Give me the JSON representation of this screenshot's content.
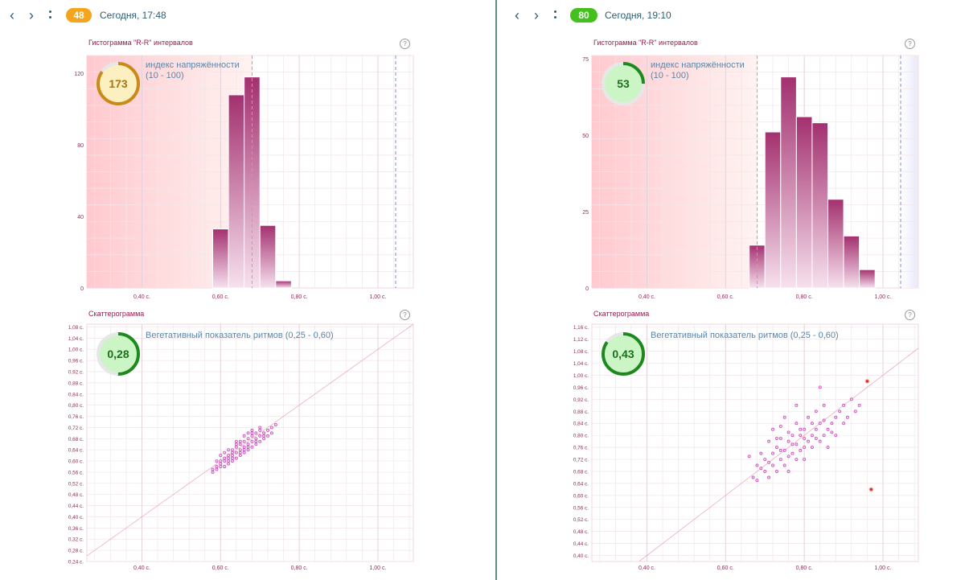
{
  "panels": [
    {
      "badge": "48",
      "badge_color": "#f4a51c",
      "datetime": "Сегодня, 17:48",
      "hist_title": "Гистограмма \"R-R\" интервалов",
      "scatter_title": "Скаттерограмма",
      "help_label": "?",
      "nav_prev": "‹",
      "nav_next": "›",
      "stress_index": {
        "value": "173",
        "label": "индекс напряжённости",
        "range": "(10 - 100)",
        "fraction": 0.85,
        "ring_color": "#c98a1a",
        "fill_color": "#fdf0c0",
        "text_color": "#a8741a"
      },
      "veg_index": {
        "value": "0,28",
        "label": "Вегетативный показатель ритмов (0,25 - 0,60)",
        "fraction": 0.5,
        "ring_color": "#1e8a1e",
        "fill_color": "#ccf5c6",
        "text_color": "#1b6e1b"
      },
      "chart_data": [
        {
          "type": "bar",
          "title": "Гистограмма \"R-R\" интервалов",
          "xlim": [
            0.26,
            1.09
          ],
          "ylim": [
            0,
            130
          ],
          "yticks": [
            0,
            40,
            80,
            120
          ],
          "ytick_labels": [
            "0",
            "40",
            "80",
            "120"
          ],
          "xticks": [
            0.4,
            0.6,
            0.8,
            1.0
          ],
          "xtick_labels": [
            "0,40 с.",
            "0,60 с.",
            "0,80 с.",
            "1,00 с."
          ],
          "bin_width": 0.04,
          "bins": [
            0.58,
            0.62,
            0.66,
            0.7,
            0.74
          ],
          "values": [
            33,
            108,
            118,
            35,
            4
          ],
          "normal_zone": [
            0.26,
            0.68
          ],
          "markers": [
            0.68,
            1.045
          ]
        },
        {
          "type": "scatter",
          "title": "Скаттерограмма",
          "xlim": [
            0.26,
            1.09
          ],
          "ylim": [
            0.24,
            1.09
          ],
          "xticks": [
            0.4,
            0.6,
            0.8,
            1.0
          ],
          "xtick_labels": [
            "0,40 с.",
            "0,60 с.",
            "0,80 с.",
            "1,00 с."
          ],
          "yticks": [
            0.24,
            0.28,
            0.32,
            0.36,
            0.4,
            0.44,
            0.48,
            0.52,
            0.56,
            0.6,
            0.64,
            0.68,
            0.72,
            0.76,
            0.8,
            0.84,
            0.88,
            0.92,
            0.96,
            1.0,
            1.04,
            1.08
          ],
          "ytick_labels": [
            "0,24 с.",
            "0,28 с.",
            "0,32 с.",
            "0,36 с.",
            "0,40 с.",
            "0,44 с.",
            "0,48 с.",
            "0,52 с.",
            "0,56 с.",
            "0,60 с.",
            "0,64 с.",
            "0,68 с.",
            "0,72 с.",
            "0,76 с.",
            "0,80 с.",
            "0,84 с.",
            "0,88 с.",
            "0,92 с.",
            "0,96 с.",
            "1,00 с.",
            "1,04 с.",
            "1,08 с."
          ],
          "points": [
            [
              0.58,
              0.56
            ],
            [
              0.58,
              0.57
            ],
            [
              0.59,
              0.58
            ],
            [
              0.59,
              0.57
            ],
            [
              0.6,
              0.58
            ],
            [
              0.6,
              0.59
            ],
            [
              0.6,
              0.6
            ],
            [
              0.61,
              0.58
            ],
            [
              0.61,
              0.6
            ],
            [
              0.61,
              0.61
            ],
            [
              0.62,
              0.59
            ],
            [
              0.62,
              0.61
            ],
            [
              0.62,
              0.62
            ],
            [
              0.63,
              0.6
            ],
            [
              0.63,
              0.62
            ],
            [
              0.63,
              0.63
            ],
            [
              0.63,
              0.64
            ],
            [
              0.64,
              0.61
            ],
            [
              0.64,
              0.63
            ],
            [
              0.64,
              0.65
            ],
            [
              0.65,
              0.62
            ],
            [
              0.65,
              0.64
            ],
            [
              0.65,
              0.66
            ],
            [
              0.65,
              0.67
            ],
            [
              0.66,
              0.63
            ],
            [
              0.66,
              0.65
            ],
            [
              0.66,
              0.67
            ],
            [
              0.67,
              0.64
            ],
            [
              0.67,
              0.66
            ],
            [
              0.67,
              0.68
            ],
            [
              0.68,
              0.65
            ],
            [
              0.68,
              0.67
            ],
            [
              0.68,
              0.69
            ],
            [
              0.69,
              0.66
            ],
            [
              0.69,
              0.68
            ],
            [
              0.69,
              0.7
            ],
            [
              0.7,
              0.67
            ],
            [
              0.7,
              0.69
            ],
            [
              0.7,
              0.71
            ],
            [
              0.71,
              0.68
            ],
            [
              0.71,
              0.7
            ],
            [
              0.72,
              0.69
            ],
            [
              0.72,
              0.71
            ],
            [
              0.73,
              0.7
            ],
            [
              0.73,
              0.72
            ],
            [
              0.74,
              0.73
            ],
            [
              0.6,
              0.62
            ],
            [
              0.61,
              0.63
            ],
            [
              0.62,
              0.64
            ],
            [
              0.64,
              0.67
            ],
            [
              0.66,
              0.69
            ],
            [
              0.67,
              0.7
            ],
            [
              0.68,
              0.71
            ],
            [
              0.63,
              0.61
            ],
            [
              0.65,
              0.63
            ],
            [
              0.67,
              0.65
            ],
            [
              0.69,
              0.67
            ],
            [
              0.71,
              0.69
            ],
            [
              0.59,
              0.6
            ],
            [
              0.66,
              0.64
            ],
            [
              0.62,
              0.6
            ],
            [
              0.64,
              0.66
            ],
            [
              0.68,
              0.7
            ],
            [
              0.7,
              0.72
            ]
          ],
          "outliers": []
        }
      ]
    },
    {
      "badge": "80",
      "badge_color": "#44c01c",
      "datetime": "Сегодня, 19:10",
      "hist_title": "Гистограмма \"R-R\" интервалов",
      "scatter_title": "Скаттерограмма",
      "help_label": "?",
      "nav_prev": "‹",
      "nav_next": "›",
      "stress_index": {
        "value": "53",
        "label": "индекс напряжённости",
        "range": "(10 - 100)",
        "fraction": 0.25,
        "ring_color": "#1e8a1e",
        "fill_color": "#ccf5c6",
        "text_color": "#1b6e1b"
      },
      "veg_index": {
        "value": "0,43",
        "label": "Вегетативный показатель ритмов (0,25 - 0,60)",
        "fraction": 0.85,
        "ring_color": "#1e8a1e",
        "fill_color": "#ccf5c6",
        "text_color": "#1b6e1b"
      },
      "chart_data": [
        {
          "type": "bar",
          "title": "Гистограмма \"R-R\" интервалов",
          "xlim": [
            0.26,
            1.09
          ],
          "ylim": [
            0,
            76
          ],
          "yticks": [
            0,
            25,
            50,
            75
          ],
          "ytick_labels": [
            "0",
            "25",
            "50",
            "75"
          ],
          "bin_width": 0.04,
          "xticks": [
            0.4,
            0.6,
            0.8,
            1.0
          ],
          "xtick_labels": [
            "0,40 с.",
            "0,60 с.",
            "0,80 с.",
            "1,00 с."
          ],
          "bins": [
            0.66,
            0.7,
            0.74,
            0.78,
            0.82,
            0.86,
            0.9,
            0.94
          ],
          "values": [
            14,
            51,
            69,
            56,
            54,
            29,
            17,
            6
          ],
          "normal_zone": [
            0.26,
            0.68
          ],
          "high_zone": [
            1.045,
            1.09
          ],
          "markers": [
            0.68,
            1.045
          ]
        },
        {
          "type": "scatter",
          "title": "Скаттерограмма",
          "xlim": [
            0.26,
            1.09
          ],
          "ylim": [
            0.38,
            1.17
          ],
          "xticks": [
            0.4,
            0.6,
            0.8,
            1.0
          ],
          "xtick_labels": [
            "0,40 с.",
            "0,60 с.",
            "0,80 с.",
            "1,00 с."
          ],
          "yticks": [
            0.4,
            0.44,
            0.48,
            0.52,
            0.56,
            0.6,
            0.64,
            0.68,
            0.72,
            0.76,
            0.8,
            0.84,
            0.88,
            0.92,
            0.96,
            1.0,
            1.04,
            1.08,
            1.12,
            1.16
          ],
          "ytick_labels": [
            "0,40 с.",
            "0,44 с.",
            "0,48 с.",
            "0,52 с.",
            "0,56 с.",
            "0,60 с.",
            "0,64 с.",
            "0,68 с.",
            "0,72 с.",
            "0,76 с.",
            "0,80 с.",
            "0,84 с.",
            "0,88 с.",
            "0,92 с.",
            "0,96 с.",
            "1,00 с.",
            "1,04 с.",
            "1,08 с.",
            "1,12 с.",
            "1,16 с."
          ],
          "points": [
            [
              0.66,
              0.73
            ],
            [
              0.67,
              0.66
            ],
            [
              0.68,
              0.7
            ],
            [
              0.68,
              0.65
            ],
            [
              0.69,
              0.69
            ],
            [
              0.7,
              0.72
            ],
            [
              0.7,
              0.68
            ],
            [
              0.71,
              0.66
            ],
            [
              0.71,
              0.78
            ],
            [
              0.72,
              0.7
            ],
            [
              0.72,
              0.74
            ],
            [
              0.72,
              0.82
            ],
            [
              0.73,
              0.68
            ],
            [
              0.73,
              0.76
            ],
            [
              0.74,
              0.72
            ],
            [
              0.74,
              0.79
            ],
            [
              0.75,
              0.7
            ],
            [
              0.75,
              0.75
            ],
            [
              0.75,
              0.86
            ],
            [
              0.76,
              0.73
            ],
            [
              0.76,
              0.78
            ],
            [
              0.76,
              0.68
            ],
            [
              0.77,
              0.74
            ],
            [
              0.77,
              0.8
            ],
            [
              0.78,
              0.72
            ],
            [
              0.78,
              0.77
            ],
            [
              0.78,
              0.84
            ],
            [
              0.79,
              0.75
            ],
            [
              0.79,
              0.8
            ],
            [
              0.8,
              0.76
            ],
            [
              0.8,
              0.82
            ],
            [
              0.8,
              0.72
            ],
            [
              0.81,
              0.78
            ],
            [
              0.81,
              0.86
            ],
            [
              0.82,
              0.8
            ],
            [
              0.82,
              0.76
            ],
            [
              0.83,
              0.82
            ],
            [
              0.83,
              0.88
            ],
            [
              0.84,
              0.78
            ],
            [
              0.84,
              0.84
            ],
            [
              0.85,
              0.8
            ],
            [
              0.85,
              0.9
            ],
            [
              0.86,
              0.82
            ],
            [
              0.86,
              0.76
            ],
            [
              0.87,
              0.84
            ],
            [
              0.88,
              0.86
            ],
            [
              0.88,
              0.8
            ],
            [
              0.89,
              0.88
            ],
            [
              0.9,
              0.84
            ],
            [
              0.9,
              0.9
            ],
            [
              0.91,
              0.86
            ],
            [
              0.92,
              0.92
            ],
            [
              0.93,
              0.88
            ],
            [
              0.69,
              0.74
            ],
            [
              0.71,
              0.71
            ],
            [
              0.73,
              0.79
            ],
            [
              0.74,
              0.75
            ],
            [
              0.76,
              0.81
            ],
            [
              0.77,
              0.77
            ],
            [
              0.79,
              0.82
            ],
            [
              0.8,
              0.79
            ],
            [
              0.82,
              0.84
            ],
            [
              0.83,
              0.79
            ],
            [
              0.85,
              0.85
            ],
            [
              0.87,
              0.81
            ],
            [
              0.78,
              0.9
            ],
            [
              0.74,
              0.83
            ],
            [
              0.84,
              0.96
            ],
            [
              0.94,
              0.9
            ]
          ],
          "outliers": [
            [
              0.96,
              0.98
            ],
            [
              0.97,
              0.62
            ]
          ]
        }
      ]
    }
  ]
}
